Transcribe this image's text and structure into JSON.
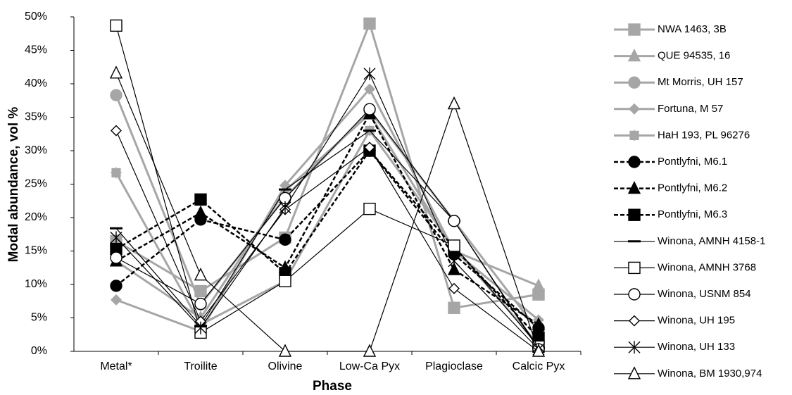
{
  "chart_data": {
    "type": "line",
    "x_label": "Phase",
    "y_label": "Modal abundance, vol %",
    "categories": [
      "Metal*",
      "Troilite",
      "Olivine",
      "Low-Ca Pyx",
      "Plagioclase",
      "Calcic Pyx"
    ],
    "ylim": [
      0,
      50
    ],
    "yticks": [
      {
        "value": 0,
        "label": "0%"
      },
      {
        "value": 5,
        "label": "5%"
      },
      {
        "value": 10,
        "label": "10%"
      },
      {
        "value": 15,
        "label": "15%"
      },
      {
        "value": 20,
        "label": "20%"
      },
      {
        "value": 25,
        "label": "25%"
      },
      {
        "value": 30,
        "label": "30%"
      },
      {
        "value": 35,
        "label": "35%"
      },
      {
        "value": 40,
        "label": "40%"
      },
      {
        "value": 45,
        "label": "45%"
      },
      {
        "value": 50,
        "label": "50%"
      }
    ],
    "legend": "right",
    "series": [
      {
        "name": "NWA 1463, 3B",
        "color": "#a6a6a6",
        "marker": "square",
        "style": "thick",
        "values": [
          16.5,
          9,
          17,
          49,
          6.5,
          8.5
        ]
      },
      {
        "name": "QUE 94535, 16",
        "color": "#a6a6a6",
        "marker": "triangle",
        "style": "thick",
        "values": [
          13.5,
          5,
          24,
          35.5,
          15,
          9.8
        ]
      },
      {
        "name": "Mt Morris, UH 157",
        "color": "#a6a6a6",
        "marker": "circle",
        "style": "thick",
        "values": [
          38.3,
          7,
          23,
          36,
          19.5,
          3
        ]
      },
      {
        "name": "Fortuna, M 57",
        "color": "#a6a6a6",
        "marker": "diamond",
        "style": "thick",
        "values": [
          7.7,
          3,
          24.8,
          39.2,
          15,
          4.7
        ]
      },
      {
        "name": "HaH 193, PL 96276",
        "color": "#a6a6a6",
        "marker": "plus",
        "style": "thick",
        "values": [
          26.7,
          4,
          10.5,
          33,
          15.5,
          1
        ]
      },
      {
        "name": "Pontlyfni, M6.1",
        "color": "#000000",
        "marker": "circle",
        "style": "dashed",
        "values": [
          9.8,
          19.7,
          16.7,
          30,
          14.5,
          3.5
        ]
      },
      {
        "name": "Pontlyfni, M6.2",
        "color": "#000000",
        "marker": "triangle",
        "style": "dashed",
        "values": [
          13.5,
          20.7,
          12.5,
          35.5,
          12.2,
          4
        ]
      },
      {
        "name": "Pontlyfni, M6.3",
        "color": "#000000",
        "marker": "square",
        "style": "dashed",
        "values": [
          15.3,
          22.7,
          11.7,
          30,
          15.5,
          2
        ]
      },
      {
        "name": "Winona, AMNH 4158-1",
        "color": "#000000",
        "marker": "dash",
        "style": "thin",
        "values": [
          18.4,
          3.8,
          24.2,
          33,
          19.5,
          0.5
        ]
      },
      {
        "name": "Winona, AMNH 3768",
        "color": "#000000",
        "marker": "square",
        "style": "open",
        "values": [
          48.7,
          2.8,
          10.5,
          21.3,
          15.8,
          0.7
        ]
      },
      {
        "name": "Winona, USNM 854",
        "color": "#000000",
        "marker": "circle",
        "style": "open",
        "values": [
          14,
          7.1,
          22.9,
          36.2,
          19.5,
          0.3
        ]
      },
      {
        "name": "Winona, UH 195",
        "color": "#000000",
        "marker": "diamond",
        "style": "open",
        "values": [
          33,
          4.5,
          21.2,
          30.5,
          9.4,
          0
        ]
      },
      {
        "name": "Winona, UH 133",
        "color": "#000000",
        "marker": "asterisk",
        "style": "open",
        "values": [
          17,
          3.5,
          21.5,
          41.5,
          13.5,
          0.3
        ]
      },
      {
        "name": "Winona, BM 1930,974",
        "color": "#000000",
        "marker": "triangle",
        "style": "open",
        "values": [
          41.6,
          11.4,
          0,
          0,
          37,
          0
        ]
      }
    ]
  }
}
